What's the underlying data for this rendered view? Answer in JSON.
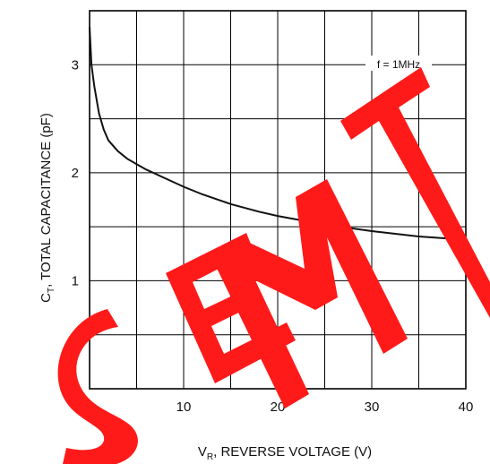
{
  "chart_data": {
    "type": "line",
    "xlabel": {
      "main": "V",
      "sub": "R",
      "rest": ", REVERSE VOLTAGE (V)"
    },
    "ylabel": {
      "main": "C",
      "sub": "T",
      "rest": ", TOTAL CAPACITANCE (pF)"
    },
    "annotation": "f = 1MHz",
    "xlim": [
      0,
      40
    ],
    "ylim": [
      0,
      3.5
    ],
    "x_ticks": [
      0,
      10,
      20,
      30,
      40
    ],
    "x_tick_labels": [
      "0",
      "10",
      "20",
      "30",
      "40"
    ],
    "y_ticks": [
      0,
      1,
      2,
      3
    ],
    "y_tick_labels": [
      "0",
      "1",
      "2",
      "3"
    ],
    "grid": true,
    "x_grid_step": 5,
    "y_grid_step": 0.5,
    "series": [
      {
        "x": [
          0,
          0.2,
          0.5,
          1,
          1.5,
          2,
          3,
          4,
          5,
          6,
          8,
          10,
          12,
          15,
          18,
          20,
          25,
          30,
          35,
          40
        ],
        "y": [
          3.35,
          3.0,
          2.8,
          2.55,
          2.4,
          2.3,
          2.2,
          2.13,
          2.08,
          2.03,
          1.95,
          1.87,
          1.8,
          1.71,
          1.64,
          1.6,
          1.52,
          1.46,
          1.41,
          1.38
        ],
        "color": "#111111"
      }
    ],
    "watermark": {
      "letters": [
        "S",
        "E",
        "M",
        "T"
      ],
      "color": "#ff1a1a"
    }
  }
}
